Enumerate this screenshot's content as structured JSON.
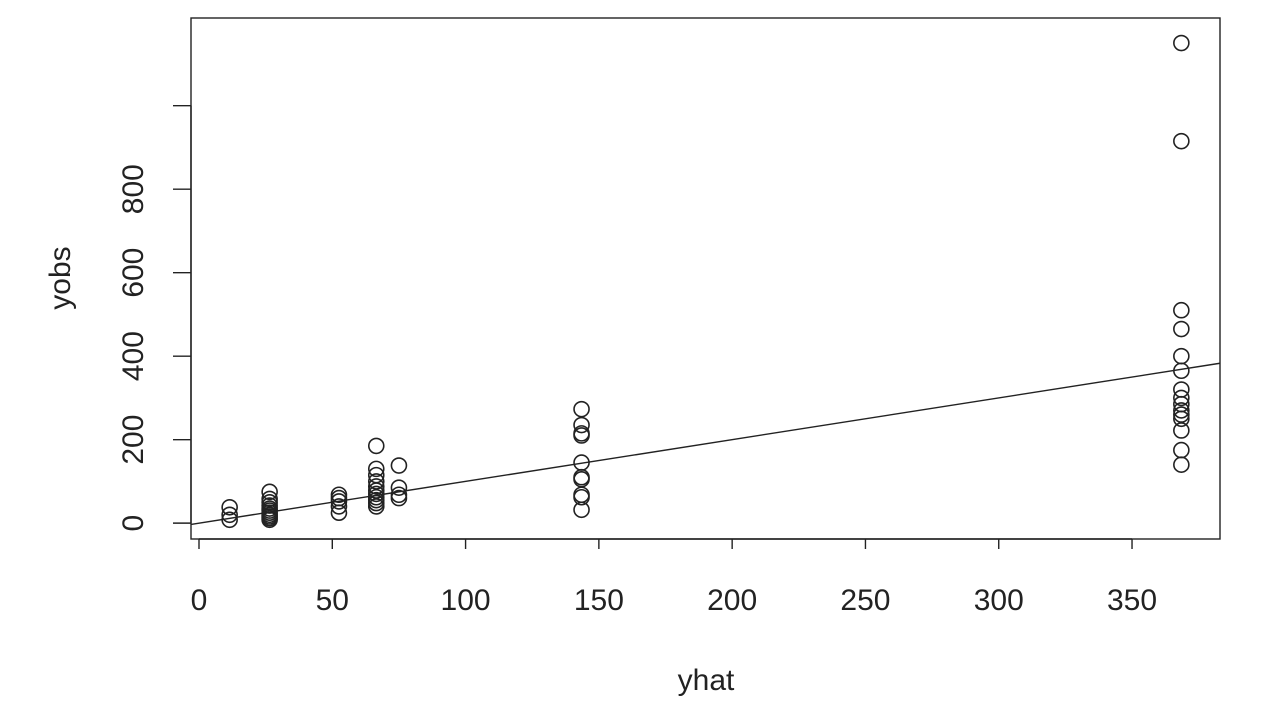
{
  "chart_data": {
    "type": "scatter",
    "xlabel": "yhat",
    "ylabel": "yobs",
    "xlim": [
      -3,
      383
    ],
    "ylim": [
      -38,
      1210
    ],
    "xticks": [
      0,
      50,
      100,
      150,
      200,
      250,
      300,
      350
    ],
    "yticks": [
      0,
      200,
      400,
      600,
      800,
      1000
    ],
    "ytick_labels": [
      "0",
      "200",
      "400",
      "600",
      "800",
      ""
    ],
    "grid": false,
    "legend": "none",
    "reference_line": {
      "intercept": 0,
      "slope": 1
    },
    "points": [
      [
        11.5,
        8
      ],
      [
        11.5,
        20
      ],
      [
        11.5,
        38
      ],
      [
        26.5,
        8
      ],
      [
        26.5,
        12
      ],
      [
        26.5,
        16
      ],
      [
        26.5,
        20
      ],
      [
        26.5,
        25
      ],
      [
        26.5,
        30
      ],
      [
        26.5,
        35
      ],
      [
        26.5,
        42
      ],
      [
        26.5,
        50
      ],
      [
        26.5,
        58
      ],
      [
        26.5,
        75
      ],
      [
        52.5,
        25
      ],
      [
        52.5,
        40
      ],
      [
        52.5,
        52
      ],
      [
        52.5,
        60
      ],
      [
        52.5,
        68
      ],
      [
        66.5,
        40
      ],
      [
        66.5,
        48
      ],
      [
        66.5,
        55
      ],
      [
        66.5,
        62
      ],
      [
        66.5,
        70
      ],
      [
        66.5,
        78
      ],
      [
        66.5,
        88
      ],
      [
        66.5,
        100
      ],
      [
        66.5,
        115
      ],
      [
        66.5,
        130
      ],
      [
        66.5,
        185
      ],
      [
        75,
        60
      ],
      [
        75,
        68
      ],
      [
        75,
        85
      ],
      [
        75,
        138
      ],
      [
        143.5,
        32
      ],
      [
        143.5,
        62
      ],
      [
        143.5,
        68
      ],
      [
        143.5,
        105
      ],
      [
        143.5,
        110
      ],
      [
        143.5,
        145
      ],
      [
        143.5,
        210
      ],
      [
        143.5,
        215
      ],
      [
        143.5,
        235
      ],
      [
        143.5,
        273
      ],
      [
        368.5,
        140
      ],
      [
        368.5,
        175
      ],
      [
        368.5,
        222
      ],
      [
        368.5,
        250
      ],
      [
        368.5,
        260
      ],
      [
        368.5,
        270
      ],
      [
        368.5,
        285
      ],
      [
        368.5,
        300
      ],
      [
        368.5,
        320
      ],
      [
        368.5,
        365
      ],
      [
        368.5,
        400
      ],
      [
        368.5,
        465
      ],
      [
        368.5,
        510
      ],
      [
        368.5,
        915
      ],
      [
        368.5,
        1150
      ]
    ]
  }
}
